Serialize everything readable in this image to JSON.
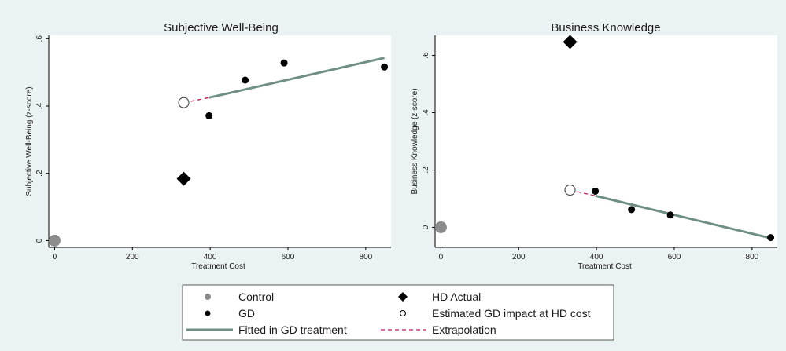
{
  "colors": {
    "background": "#eaf2f3",
    "plot_area": "#ffffff",
    "control": "#8c8c8c",
    "gd": "#000000",
    "hd_actual": "#000000",
    "fitted": "#6f8f85",
    "extrapolation": "#c2185b"
  },
  "legend": {
    "items": [
      {
        "label": "Control",
        "marker": "gray-dot"
      },
      {
        "label": "HD Actual",
        "marker": "black-diamond"
      },
      {
        "label": "GD",
        "marker": "black-dot"
      },
      {
        "label": "Estimated GD impact at HD cost",
        "marker": "hollow-circle"
      },
      {
        "label": "Fitted in GD treatment",
        "marker": "solid-line"
      },
      {
        "label": "Extrapolation",
        "marker": "dashed-line"
      }
    ]
  },
  "chart_data": [
    {
      "type": "scatter",
      "title": "Subjective Well-Being",
      "xlabel": "Treatment Cost",
      "ylabel": "Subjective Well-Being (z-score)",
      "xlim": [
        -15,
        865
      ],
      "ylim": [
        -0.02,
        0.61
      ],
      "xticks": [
        0,
        200,
        400,
        600,
        800
      ],
      "yticks": [
        0,
        0.2,
        0.4,
        0.6
      ],
      "ytick_labels": [
        "0",
        ".2",
        ".4",
        ".6"
      ],
      "grid": false,
      "control": {
        "x": 0,
        "y": 0
      },
      "hd_actual": {
        "x": 332,
        "y": 0.184
      },
      "gd_points": [
        {
          "x": 397,
          "y": 0.371
        },
        {
          "x": 490,
          "y": 0.477
        },
        {
          "x": 590,
          "y": 0.528
        },
        {
          "x": 848,
          "y": 0.516
        }
      ],
      "estimated_gd_at_hd_cost": {
        "x": 332,
        "y": 0.41
      },
      "fitted_line": [
        {
          "x": 397,
          "y": 0.425
        },
        {
          "x": 848,
          "y": 0.543
        }
      ],
      "extrapolation_line": [
        {
          "x": 332,
          "y": 0.41
        },
        {
          "x": 397,
          "y": 0.425
        }
      ]
    },
    {
      "type": "scatter",
      "title": "Business Knowledge",
      "xlabel": "Treatment Cost",
      "ylabel": "Business Knowledge (z-score)",
      "xlim": [
        -15,
        865
      ],
      "ylim": [
        -0.07,
        0.67
      ],
      "xticks": [
        0,
        200,
        400,
        600,
        800
      ],
      "yticks": [
        0,
        0.2,
        0.4,
        0.6
      ],
      "ytick_labels": [
        "0",
        ".2",
        ".4",
        ".6"
      ],
      "grid": false,
      "control": {
        "x": 0,
        "y": 0
      },
      "hd_actual": {
        "x": 332,
        "y": 0.647
      },
      "gd_points": [
        {
          "x": 397,
          "y": 0.126
        },
        {
          "x": 490,
          "y": 0.062
        },
        {
          "x": 590,
          "y": 0.043
        },
        {
          "x": 848,
          "y": -0.036
        }
      ],
      "estimated_gd_at_hd_cost": {
        "x": 332,
        "y": 0.13
      },
      "fitted_line": [
        {
          "x": 397,
          "y": 0.11
        },
        {
          "x": 848,
          "y": -0.038
        }
      ],
      "extrapolation_line": [
        {
          "x": 332,
          "y": 0.13
        },
        {
          "x": 397,
          "y": 0.11
        }
      ]
    }
  ]
}
